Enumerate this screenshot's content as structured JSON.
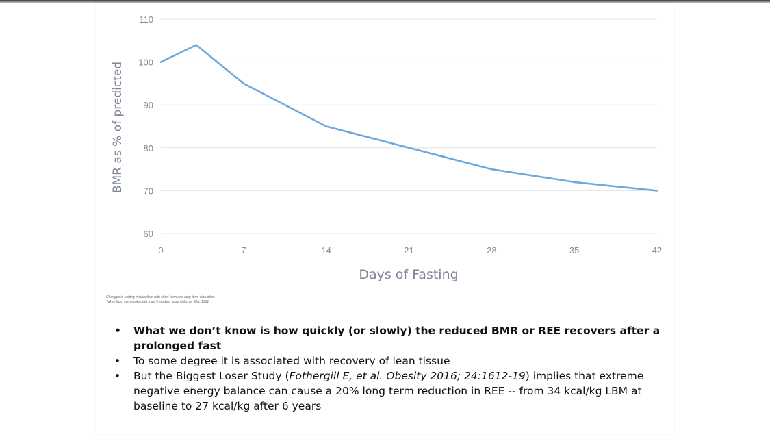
{
  "chart_data": {
    "type": "line",
    "xlabel": "Days of Fasting",
    "ylabel": "BMR as % of predicted",
    "xlim": [
      0,
      42
    ],
    "ylim": [
      60,
      110
    ],
    "x_ticks": [
      0,
      7,
      14,
      21,
      28,
      35,
      42
    ],
    "y_ticks": [
      60,
      70,
      80,
      90,
      100,
      110
    ],
    "grid": "horizontal",
    "series": [
      {
        "x": [
          0,
          3,
          7,
          14,
          21,
          28,
          35,
          42
        ],
        "y": [
          100,
          104,
          95,
          85,
          80,
          75,
          72,
          70
        ]
      }
    ],
    "line_color": "#6fa8dc"
  },
  "caption": {
    "line1": "Changes in resting metabolism with short-term and long-term starvation.",
    "line2": "Taken from composite data from 5 studies, assembled by Elia, 1991."
  },
  "bullets": {
    "b1": "What we don’t know is how quickly (or slowly) the reduced BMR or REE recovers after a prolonged fast",
    "b2": "To some degree it is associated with recovery of lean tissue",
    "b3_pre": "But the Biggest Loser Study (",
    "b3_cite": "Fothergill E, et al.  Obesity 2016; 24:1612-19",
    "b3_post": ") implies that extreme negative energy balance can cause a 20% long term reduction in REE -- from 34 kcal/kg LBM at baseline to 27 kcal/kg after 6 years"
  }
}
